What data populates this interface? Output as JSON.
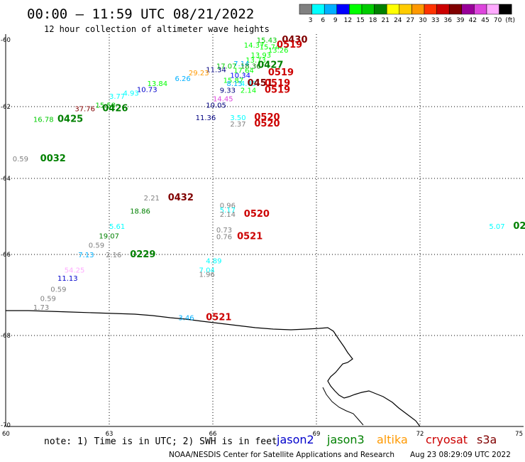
{
  "header": {
    "title": "00:00 – 11:59 UTC 08/21/2022",
    "subtitle": "12 hour collection of altimeter wave heights"
  },
  "legend": {
    "colors": [
      "#808080",
      "#00ffff",
      "#00b0ff",
      "#0000ff",
      "#00ff00",
      "#00cc00",
      "#008000",
      "#ffff00",
      "#ffcc00",
      "#ff9900",
      "#ff3300",
      "#cc0000",
      "#800000",
      "#990099",
      "#dd44dd",
      "#ffaaff",
      "#000000"
    ],
    "labels": [
      "3",
      "6",
      "9",
      "12",
      "15",
      "18",
      "21",
      "24",
      "27",
      "30",
      "33",
      "36",
      "39",
      "42",
      "45",
      "70",
      "(ft)"
    ]
  },
  "axes": {
    "lat_labels": [
      "-60",
      "-62",
      "-64",
      "-66",
      "-68",
      "-70"
    ],
    "lon_labels": [
      "60",
      "63",
      "66",
      "69",
      "72",
      "75"
    ]
  },
  "satellites": [
    {
      "name": "jason2",
      "color": "#0000cc"
    },
    {
      "name": "jason3",
      "color": "#008000"
    },
    {
      "name": "altika",
      "color": "#ff9900"
    },
    {
      "name": "cryosat",
      "color": "#cc0000"
    },
    {
      "name": "s3a",
      "color": "#800000"
    }
  ],
  "footer": {
    "note": "note: 1) Time is in UTC; 2) SWH is in feet",
    "credit": "NOAA/NESDIS Center for Satellite Applications and Research",
    "timestamp": "Aug 23 08:29:09 UTC 2022"
  },
  "observations": [
    {
      "text": "15.43",
      "color": "#00cc00",
      "lon": 67.27,
      "lat": -60.0
    },
    {
      "text": "0430",
      "color": "#800000",
      "lon": 68.0,
      "lat": -60.0
    },
    {
      "text": "14.37",
      "color": "#00ff00",
      "lon": 66.9,
      "lat": -60.15
    },
    {
      "text": "15.74",
      "color": "#00ff00",
      "lon": 67.35,
      "lat": -60.2
    },
    {
      "text": "13.26",
      "color": "#00ff00",
      "lon": 67.6,
      "lat": -60.3
    },
    {
      "text": "0519",
      "color": "#cc0000",
      "lon": 67.85,
      "lat": -60.15
    },
    {
      "text": "13.93",
      "color": "#00ff00",
      "lon": 67.1,
      "lat": -60.45
    },
    {
      "text": "13.73",
      "color": "#00ff00",
      "lon": 66.95,
      "lat": -60.6
    },
    {
      "text": "7.14",
      "color": "#00b0ff",
      "lon": 66.6,
      "lat": -60.7
    },
    {
      "text": "17.07",
      "color": "#00cc00",
      "lon": 66.1,
      "lat": -60.78
    },
    {
      "text": "11.34",
      "color": "#000080",
      "lon": 65.8,
      "lat": -60.88
    },
    {
      "text": "18.36",
      "color": "#008000",
      "lon": 66.8,
      "lat": -60.78
    },
    {
      "text": "0427",
      "color": "#008000",
      "lon": 67.3,
      "lat": -60.75
    },
    {
      "text": "29.23",
      "color": "#ff9900",
      "lon": 65.3,
      "lat": -60.98
    },
    {
      "text": "17.64",
      "color": "#00ff00",
      "lon": 66.6,
      "lat": -60.9
    },
    {
      "text": "0519",
      "color": "#cc0000",
      "lon": 67.6,
      "lat": -60.98
    },
    {
      "text": "6.26",
      "color": "#00b0ff",
      "lon": 64.9,
      "lat": -61.15
    },
    {
      "text": "10.34",
      "color": "#0000ff",
      "lon": 66.5,
      "lat": -61.05
    },
    {
      "text": "15.87",
      "color": "#00ff00",
      "lon": 66.3,
      "lat": -61.2
    },
    {
      "text": "8.15",
      "color": "#00b0ff",
      "lon": 66.4,
      "lat": -61.3
    },
    {
      "text": "4.45",
      "color": "#00ffff",
      "lon": 66.8,
      "lat": -61.3
    },
    {
      "text": "0451",
      "color": "#800000",
      "lon": 67.0,
      "lat": -61.3
    },
    {
      "text": "0519",
      "color": "#cc0000",
      "lon": 67.5,
      "lat": -61.3
    },
    {
      "text": "13.84",
      "color": "#00ff00",
      "lon": 64.1,
      "lat": -61.3
    },
    {
      "text": "10.73",
      "color": "#0000cc",
      "lon": 63.8,
      "lat": -61.48
    },
    {
      "text": "4.93",
      "color": "#00ffff",
      "lon": 63.4,
      "lat": -61.58
    },
    {
      "text": "3.77",
      "color": "#00ffff",
      "lon": 63.0,
      "lat": -61.68
    },
    {
      "text": "9.33",
      "color": "#000080",
      "lon": 66.2,
      "lat": -61.5
    },
    {
      "text": "2.14",
      "color": "#00ff00",
      "lon": 66.8,
      "lat": -61.5
    },
    {
      "text": "0519",
      "color": "#cc0000",
      "lon": 67.5,
      "lat": -61.5
    },
    {
      "text": "14.45",
      "color": "#dd44dd",
      "lon": 66.0,
      "lat": -61.75
    },
    {
      "text": "10.05",
      "color": "#000080",
      "lon": 65.8,
      "lat": -61.95
    },
    {
      "text": "15.58",
      "color": "#00cc00",
      "lon": 62.6,
      "lat": -61.95
    },
    {
      "text": "37.76",
      "color": "#800000",
      "lon": 62.0,
      "lat": -62.05
    },
    {
      "text": "0426",
      "color": "#008000",
      "lon": 62.8,
      "lat": -62.05
    },
    {
      "text": "11.36",
      "color": "#000080",
      "lon": 65.5,
      "lat": -62.3
    },
    {
      "text": "3.50",
      "color": "#00ffff",
      "lon": 66.5,
      "lat": -62.3
    },
    {
      "text": "0520",
      "color": "#cc0000",
      "lon": 67.2,
      "lat": -62.3
    },
    {
      "text": "2.37",
      "color": "#808080",
      "lon": 66.5,
      "lat": -62.48
    },
    {
      "text": "0520",
      "color": "#cc0000",
      "lon": 67.2,
      "lat": -62.48
    },
    {
      "text": "16.78",
      "color": "#00cc00",
      "lon": 60.8,
      "lat": -62.35
    },
    {
      "text": "0425",
      "color": "#008000",
      "lon": 61.5,
      "lat": -62.35
    },
    {
      "text": "0.59",
      "color": "#808080",
      "lon": 60.2,
      "lat": -63.45
    },
    {
      "text": "0032",
      "color": "#008000",
      "lon": 61.0,
      "lat": -63.45
    },
    {
      "text": "2.21",
      "color": "#808080",
      "lon": 64.0,
      "lat": -64.5
    },
    {
      "text": "0432",
      "color": "#800000",
      "lon": 64.7,
      "lat": -64.5
    },
    {
      "text": "0.96",
      "color": "#808080",
      "lon": 66.2,
      "lat": -64.7
    },
    {
      "text": "5.17",
      "color": "#00ffff",
      "lon": 66.2,
      "lat": -64.82
    },
    {
      "text": "18.86",
      "color": "#008000",
      "lon": 63.6,
      "lat": -64.85
    },
    {
      "text": "2.14",
      "color": "#808080",
      "lon": 66.2,
      "lat": -64.93
    },
    {
      "text": "0520",
      "color": "#cc0000",
      "lon": 66.9,
      "lat": -64.93
    },
    {
      "text": "5.61",
      "color": "#00ffff",
      "lon": 63.0,
      "lat": -65.25
    },
    {
      "text": "5.07",
      "color": "#00ffff",
      "lon": 74.0,
      "lat": -65.25
    },
    {
      "text": "02",
      "color": "#008000",
      "lon": 74.7,
      "lat": -65.25
    },
    {
      "text": "0.73",
      "color": "#808080",
      "lon": 66.1,
      "lat": -65.35
    },
    {
      "text": "19.07",
      "color": "#008000",
      "lon": 62.7,
      "lat": -65.5
    },
    {
      "text": "0.76",
      "color": "#808080",
      "lon": 66.1,
      "lat": -65.52
    },
    {
      "text": "0521",
      "color": "#cc0000",
      "lon": 66.7,
      "lat": -65.52
    },
    {
      "text": "0.59",
      "color": "#808080",
      "lon": 62.4,
      "lat": -65.75
    },
    {
      "text": "7.13",
      "color": "#00b0ff",
      "lon": 62.1,
      "lat": -66.0
    },
    {
      "text": "2.16",
      "color": "#808080",
      "lon": 62.9,
      "lat": -66.0
    },
    {
      "text": "0229",
      "color": "#008000",
      "lon": 63.6,
      "lat": -66.0
    },
    {
      "text": "4.89",
      "color": "#00ffff",
      "lon": 65.8,
      "lat": -66.15
    },
    {
      "text": "7.04",
      "color": "#00ffff",
      "lon": 65.6,
      "lat": -66.38
    },
    {
      "text": "54.25",
      "color": "#ffaaff",
      "lon": 61.7,
      "lat": -66.38
    },
    {
      "text": "1.96",
      "color": "#808080",
      "lon": 65.6,
      "lat": -66.48
    },
    {
      "text": "11.13",
      "color": "#0000cc",
      "lon": 61.5,
      "lat": -66.58
    },
    {
      "text": "0.59",
      "color": "#808080",
      "lon": 61.3,
      "lat": -66.85
    },
    {
      "text": "0.59",
      "color": "#808080",
      "lon": 61.0,
      "lat": -67.08
    },
    {
      "text": "1.73",
      "color": "#808080",
      "lon": 60.8,
      "lat": -67.3
    },
    {
      "text": "3.46",
      "color": "#00b0ff",
      "lon": 65.0,
      "lat": -67.55
    },
    {
      "text": "0521",
      "color": "#cc0000",
      "lon": 65.8,
      "lat": -67.55
    }
  ]
}
